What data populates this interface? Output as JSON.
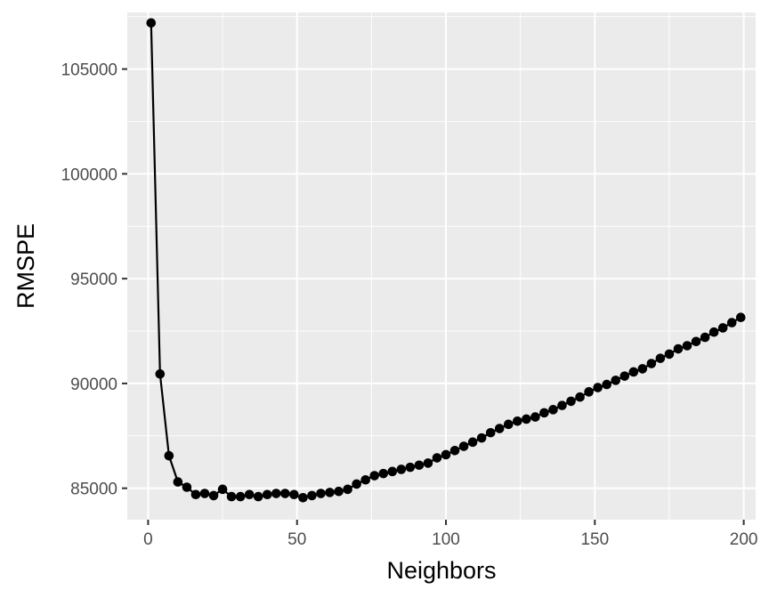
{
  "chart_data": {
    "type": "line",
    "title": "",
    "xlabel": "Neighbors",
    "ylabel": "RMSPE",
    "xlim": [
      -7,
      204
    ],
    "ylim": [
      83500,
      107700
    ],
    "x_ticks": [
      0,
      50,
      100,
      150,
      200
    ],
    "y_ticks": [
      85000,
      90000,
      95000,
      100000,
      105000
    ],
    "x_tick_labels": [
      "0",
      "50",
      "100",
      "150",
      "200"
    ],
    "y_tick_labels": [
      "85000",
      "90000",
      "95000",
      "100000",
      "105000"
    ],
    "grid": true,
    "legend": "none",
    "colors": {
      "panel": "#ebebeb",
      "grid": "#ffffff",
      "series": "#000000",
      "tick": "#333333"
    },
    "series": [
      {
        "x": [
          1,
          4,
          7,
          10,
          13,
          16,
          19,
          22,
          25,
          28,
          31,
          34,
          37,
          40,
          43,
          46,
          49,
          52,
          55,
          58,
          61,
          64,
          67,
          70,
          73,
          76,
          79,
          82,
          85,
          88,
          91,
          94,
          97,
          100,
          103,
          106,
          109,
          112,
          115,
          118,
          121,
          124,
          127,
          130,
          133,
          136,
          139,
          142,
          145,
          148,
          151,
          154,
          157,
          160,
          163,
          166,
          169,
          172,
          175,
          178,
          181,
          184,
          187,
          190,
          193,
          196,
          199
        ],
        "y": [
          107200,
          90450,
          86550,
          85300,
          85050,
          84700,
          84750,
          84650,
          84950,
          84600,
          84600,
          84700,
          84600,
          84700,
          84750,
          84750,
          84700,
          84550,
          84650,
          84750,
          84800,
          84850,
          84950,
          85200,
          85400,
          85600,
          85700,
          85800,
          85900,
          86000,
          86100,
          86200,
          86450,
          86600,
          86800,
          87000,
          87200,
          87400,
          87650,
          87850,
          88050,
          88200,
          88300,
          88400,
          88600,
          88750,
          88950,
          89150,
          89350,
          89600,
          89800,
          89950,
          90150,
          90350,
          90550,
          90700,
          90950,
          91200,
          91400,
          91650,
          91800,
          92000,
          92200,
          92450,
          92650,
          92900,
          93150
        ]
      }
    ]
  }
}
